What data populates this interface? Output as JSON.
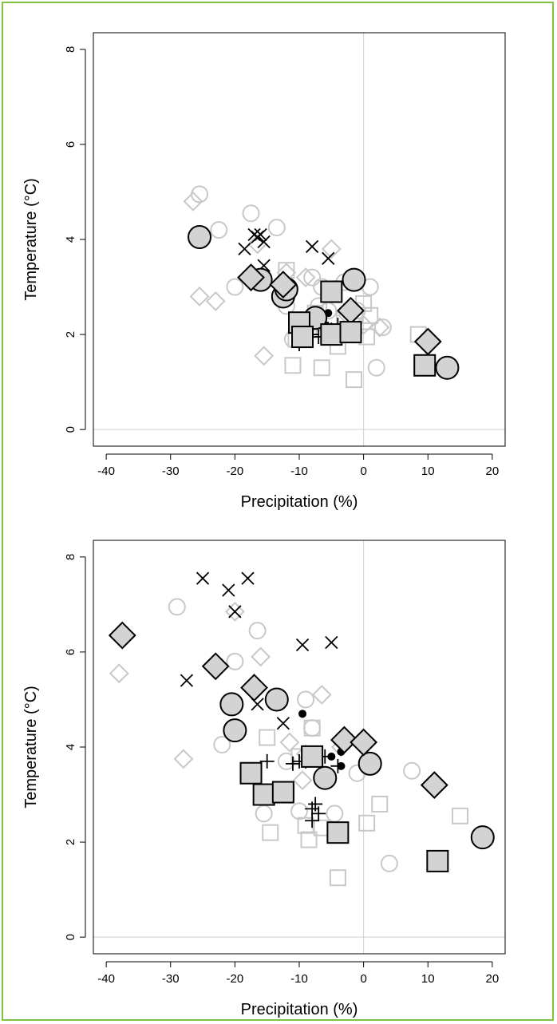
{
  "colors": {
    "frame": "#7fc241",
    "ghost": "#c8c8c8",
    "fill": "#d3d3d3",
    "ink": "#000000",
    "refline": "#d0d0d0"
  },
  "chart_data": [
    {
      "type": "scatter",
      "xlabel": "Precipitation (%)",
      "ylabel": "Temperature (°C)",
      "xlim": [
        -42,
        22
      ],
      "ylim": [
        -0.35,
        8.35
      ],
      "xticks": [
        "-40",
        "-30",
        "-20",
        "-10",
        "0",
        "10",
        "20"
      ],
      "yticks": [
        "0",
        "2",
        "4",
        "6",
        "8"
      ],
      "grid": false,
      "reference_lines": {
        "x": 0,
        "y": 0
      },
      "series": [
        {
          "marker": "open-circle",
          "points": [
            [
              -25.5,
              4.95
            ],
            [
              -22.5,
              4.2
            ],
            [
              -20,
              3.0
            ],
            [
              -17.5,
              4.55
            ],
            [
              -16.5,
              3.1
            ],
            [
              -13.5,
              4.25
            ],
            [
              -8,
              3.2
            ],
            [
              -6.5,
              3.0
            ],
            [
              -5.5,
              2.5
            ],
            [
              -4,
              2.0
            ],
            [
              -3,
              3.1
            ],
            [
              -1,
              2.5
            ],
            [
              1,
              3.0
            ],
            [
              2,
              1.3
            ],
            [
              3,
              2.15
            ],
            [
              -11,
              1.9
            ],
            [
              -9,
              2.1
            ],
            [
              -7,
              2.6
            ],
            [
              -12,
              2.6
            ]
          ]
        },
        {
          "marker": "open-diamond",
          "points": [
            [
              -26.5,
              4.8
            ],
            [
              -25.5,
              2.8
            ],
            [
              -23,
              2.7
            ],
            [
              -16.5,
              3.9
            ],
            [
              -15.5,
              1.55
            ],
            [
              -12,
              3.3
            ],
            [
              -9,
              3.2
            ],
            [
              -5,
              3.8
            ],
            [
              -2.5,
              2.4
            ],
            [
              0,
              2.2
            ],
            [
              2.5,
              2.15
            ],
            [
              -7,
              2.25
            ]
          ]
        },
        {
          "marker": "open-square",
          "points": [
            [
              -12,
              3.35
            ],
            [
              -11,
              1.35
            ],
            [
              -10.5,
              1.9
            ],
            [
              -7.5,
              2.45
            ],
            [
              -6.5,
              1.3
            ],
            [
              -5,
              2.0
            ],
            [
              -4,
              1.75
            ],
            [
              -1.5,
              1.05
            ],
            [
              0,
              2.65
            ],
            [
              0.5,
              1.95
            ],
            [
              1,
              2.4
            ],
            [
              8.5,
              2.0
            ],
            [
              -8.5,
              2.1
            ],
            [
              -3,
              2.3
            ]
          ]
        },
        {
          "marker": "cross",
          "points": [
            [
              -18.5,
              3.8
            ],
            [
              -17,
              4.1
            ],
            [
              -16.5,
              4.05
            ],
            [
              -16,
              4.1
            ],
            [
              -15.5,
              3.95
            ],
            [
              -15.5,
              3.45
            ],
            [
              -8,
              3.85
            ],
            [
              -5.5,
              3.6
            ]
          ]
        },
        {
          "marker": "plus",
          "points": [
            [
              -10,
              1.8
            ],
            [
              -9,
              2.2
            ],
            [
              -8,
              2.0
            ],
            [
              -7,
              1.95
            ],
            [
              -6.5,
              2.25
            ],
            [
              -5,
              2.1
            ],
            [
              -4,
              2.2
            ],
            [
              -3,
              2.5
            ]
          ]
        },
        {
          "marker": "dot",
          "points": [
            [
              -12,
              3.15
            ],
            [
              -10,
              2.3
            ],
            [
              -7.5,
              2.4
            ],
            [
              -6.5,
              2.4
            ],
            [
              -5.5,
              2.45
            ]
          ]
        },
        {
          "marker": "filled-circle",
          "points": [
            [
              -25.5,
              4.05
            ],
            [
              -16,
              3.15
            ],
            [
              -12.5,
              2.8
            ],
            [
              -12,
              2.95
            ],
            [
              -7.5,
              2.35
            ],
            [
              -1.5,
              3.15
            ],
            [
              13,
              1.3
            ]
          ]
        },
        {
          "marker": "filled-diamond",
          "points": [
            [
              -17.5,
              3.2
            ],
            [
              -12.5,
              3.05
            ],
            [
              -2,
              2.5
            ],
            [
              10,
              1.85
            ]
          ]
        },
        {
          "marker": "filled-square",
          "points": [
            [
              -10,
              2.25
            ],
            [
              -9.5,
              1.95
            ],
            [
              -5,
              2.9
            ],
            [
              -5,
              2.0
            ],
            [
              -2,
              2.05
            ],
            [
              9.5,
              1.35
            ]
          ]
        }
      ]
    },
    {
      "type": "scatter",
      "xlabel": "Precipitation (%)",
      "ylabel": "Temperature (°C)",
      "xlim": [
        -42,
        22
      ],
      "ylim": [
        -0.35,
        8.35
      ],
      "xticks": [
        "-40",
        "-30",
        "-20",
        "-10",
        "0",
        "10",
        "20"
      ],
      "yticks": [
        "0",
        "2",
        "4",
        "6",
        "8"
      ],
      "grid": false,
      "reference_lines": {
        "x": 0,
        "y": 0
      },
      "series": [
        {
          "marker": "open-circle",
          "points": [
            [
              -29,
              6.95
            ],
            [
              -22,
              4.05
            ],
            [
              -20,
              5.8
            ],
            [
              -16.5,
              6.45
            ],
            [
              -15.5,
              2.6
            ],
            [
              -12,
              3.7
            ],
            [
              -9,
              5.0
            ],
            [
              -8,
              4.4
            ],
            [
              -6,
              3.35
            ],
            [
              -4.5,
              2.6
            ],
            [
              -1,
              3.45
            ],
            [
              4,
              1.55
            ],
            [
              7.5,
              3.5
            ],
            [
              -13,
              3.1
            ],
            [
              -10,
              2.65
            ]
          ]
        },
        {
          "marker": "open-diamond",
          "points": [
            [
              -38,
              5.55
            ],
            [
              -28,
              3.75
            ],
            [
              -20,
              6.85
            ],
            [
              -16,
              5.9
            ],
            [
              -11.5,
              4.1
            ],
            [
              -9,
              3.85
            ],
            [
              -6.5,
              5.1
            ],
            [
              -3.5,
              4.0
            ],
            [
              -9.5,
              3.3
            ]
          ]
        },
        {
          "marker": "open-square",
          "points": [
            [
              -15,
              4.2
            ],
            [
              -14.5,
              2.2
            ],
            [
              -12,
              3.05
            ],
            [
              -10,
              3.8
            ],
            [
              -8.5,
              2.05
            ],
            [
              -8,
              4.4
            ],
            [
              -6.5,
              2.3
            ],
            [
              -4,
              1.25
            ],
            [
              0.5,
              2.4
            ],
            [
              2.5,
              2.8
            ],
            [
              15,
              2.55
            ],
            [
              -9,
              2.35
            ]
          ]
        },
        {
          "marker": "cross",
          "points": [
            [
              -27.5,
              5.4
            ],
            [
              -25,
              7.55
            ],
            [
              -21,
              7.3
            ],
            [
              -20,
              6.85
            ],
            [
              -18,
              7.55
            ],
            [
              -16.5,
              4.9
            ],
            [
              -12.5,
              4.5
            ],
            [
              -9.5,
              6.15
            ],
            [
              -5,
              6.2
            ]
          ]
        },
        {
          "marker": "plus",
          "points": [
            [
              -15,
              3.7
            ],
            [
              -11,
              3.65
            ],
            [
              -10,
              3.7
            ],
            [
              -9,
              3.7
            ],
            [
              -8,
              2.7
            ],
            [
              -7.5,
              2.8
            ],
            [
              -7,
              2.6
            ],
            [
              -6,
              3.8
            ],
            [
              -4,
              3.6
            ],
            [
              -8,
              2.45
            ]
          ]
        },
        {
          "marker": "dot",
          "points": [
            [
              -9.5,
              4.7
            ],
            [
              -7,
              3.8
            ],
            [
              -5,
              3.8
            ],
            [
              -3.5,
              3.9
            ],
            [
              -3.5,
              3.6
            ]
          ]
        },
        {
          "marker": "filled-circle",
          "points": [
            [
              -20.5,
              4.9
            ],
            [
              -20,
              4.35
            ],
            [
              -13.5,
              5.0
            ],
            [
              -6,
              3.35
            ],
            [
              1,
              3.65
            ],
            [
              18.5,
              2.1
            ]
          ]
        },
        {
          "marker": "filled-diamond",
          "points": [
            [
              -37.5,
              6.35
            ],
            [
              -23,
              5.7
            ],
            [
              -17,
              5.25
            ],
            [
              -3,
              4.15
            ],
            [
              0,
              4.1
            ],
            [
              11,
              3.2
            ]
          ]
        },
        {
          "marker": "filled-square",
          "points": [
            [
              -17.5,
              3.45
            ],
            [
              -15.5,
              3.0
            ],
            [
              -12.5,
              3.05
            ],
            [
              -8,
              3.8
            ],
            [
              -4,
              2.2
            ],
            [
              11.5,
              1.6
            ]
          ]
        }
      ]
    }
  ]
}
